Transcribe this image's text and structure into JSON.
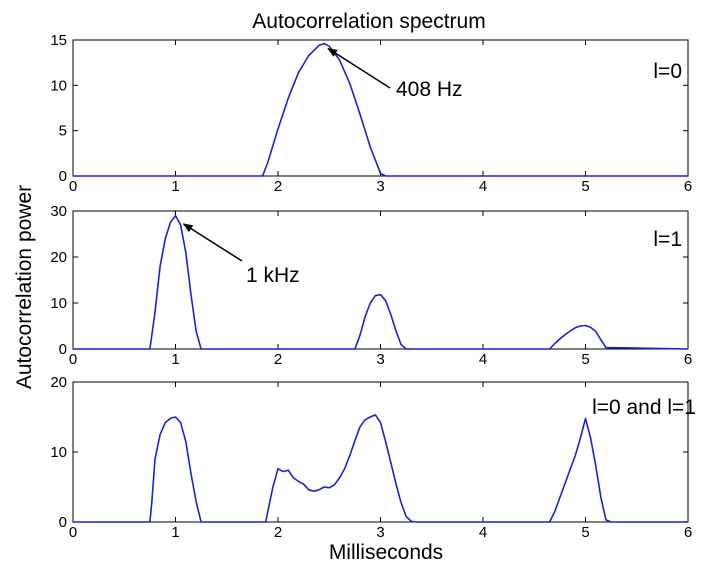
{
  "figure": {
    "title": "Autocorrelation spectrum",
    "xlabel": "Milliseconds",
    "ylabel": "Autocorrelation power"
  },
  "colors": {
    "series": "#1f1fd6",
    "axes": "#000000",
    "annotation": "#000000"
  },
  "chart_data": [
    {
      "type": "line",
      "title": "",
      "panel_label": "l=0",
      "xlim": [
        0,
        6
      ],
      "ylim": [
        0,
        15
      ],
      "xticks": [
        "0",
        "1",
        "2",
        "3",
        "4",
        "5",
        "6"
      ],
      "yticks": [
        "0",
        "5",
        "10",
        "15"
      ],
      "grid": false,
      "series": [
        {
          "x": [
            0,
            1.85,
            1.9,
            2.0,
            2.1,
            2.2,
            2.3,
            2.4,
            2.45,
            2.5,
            2.6,
            2.7,
            2.8,
            2.9,
            3.0,
            3.05,
            6
          ],
          "y": [
            0,
            0,
            1.5,
            5.2,
            8.6,
            11.4,
            13.3,
            14.4,
            14.6,
            14.3,
            12.8,
            10.2,
            6.8,
            3.2,
            0.3,
            0,
            0
          ]
        }
      ],
      "annotations": [
        {
          "text": "408 Hz",
          "x": 2.45,
          "y": 14.5
        }
      ]
    },
    {
      "type": "line",
      "title": "",
      "panel_label": "l=1",
      "xlim": [
        0,
        6
      ],
      "ylim": [
        0,
        30
      ],
      "xticks": [
        "0",
        "1",
        "2",
        "3",
        "4",
        "5",
        "6"
      ],
      "yticks": [
        "0",
        "10",
        "20",
        "30"
      ],
      "grid": false,
      "series": [
        {
          "x": [
            0,
            0.75,
            0.8,
            0.85,
            0.9,
            0.95,
            1.0,
            1.05,
            1.1,
            1.15,
            1.2,
            1.25,
            2.75,
            2.8,
            2.85,
            2.9,
            2.95,
            3.0,
            3.05,
            3.1,
            3.15,
            3.2,
            3.25,
            4.65,
            4.7,
            4.75,
            4.8,
            4.85,
            4.9,
            4.95,
            5.0,
            5.05,
            5.1,
            5.15,
            5.2,
            6
          ],
          "y": [
            0,
            0,
            8,
            18,
            24,
            27.5,
            29,
            27,
            21,
            12,
            4,
            0,
            0,
            3,
            7,
            10,
            11.6,
            11.8,
            10.5,
            7.5,
            4,
            1,
            0,
            0,
            1.2,
            2.2,
            3.1,
            3.9,
            4.6,
            5.0,
            5.1,
            4.7,
            3.8,
            2.0,
            0.3,
            0
          ]
        }
      ],
      "annotations": [
        {
          "text": "1 kHz",
          "x": 1.0,
          "y": 28.5
        }
      ]
    },
    {
      "type": "line",
      "title": "",
      "panel_label": "l=0 and l=1",
      "xlim": [
        0,
        6
      ],
      "ylim": [
        0,
        20
      ],
      "xticks": [
        "0",
        "1",
        "2",
        "3",
        "4",
        "5",
        "6"
      ],
      "yticks": [
        "0",
        "10",
        "20"
      ],
      "grid": false,
      "series": [
        {
          "x": [
            0,
            0.75,
            0.77,
            0.8,
            0.85,
            0.9,
            0.95,
            1.0,
            1.05,
            1.1,
            1.15,
            1.2,
            1.25,
            1.88,
            1.9,
            1.95,
            2.0,
            2.05,
            2.1,
            2.15,
            2.2,
            2.25,
            2.3,
            2.35,
            2.4,
            2.45,
            2.5,
            2.55,
            2.6,
            2.65,
            2.7,
            2.75,
            2.8,
            2.85,
            2.9,
            2.95,
            3.0,
            3.05,
            3.1,
            3.15,
            3.2,
            3.25,
            3.3,
            3.35,
            4.65,
            4.7,
            4.75,
            4.8,
            4.85,
            4.9,
            4.95,
            5.0,
            5.05,
            5.1,
            5.15,
            5.2,
            5.25,
            6
          ],
          "y": [
            0,
            0,
            3,
            9,
            12.5,
            14.2,
            14.8,
            15,
            14.2,
            11.5,
            7,
            3,
            0,
            0,
            1.5,
            5,
            7.6,
            7.2,
            7.4,
            6.3,
            5.8,
            5.4,
            4.6,
            4.4,
            4.6,
            5.0,
            4.9,
            5.3,
            6.3,
            7.6,
            9.5,
            11.6,
            13.6,
            14.6,
            15.0,
            15.3,
            14.2,
            11.5,
            8.5,
            5.5,
            2.8,
            0.8,
            0.1,
            0,
            0,
            1.5,
            3.5,
            5.5,
            7.5,
            9.5,
            12,
            14.8,
            12,
            8,
            3.5,
            0.3,
            0,
            0
          ]
        }
      ],
      "annotations": []
    }
  ]
}
